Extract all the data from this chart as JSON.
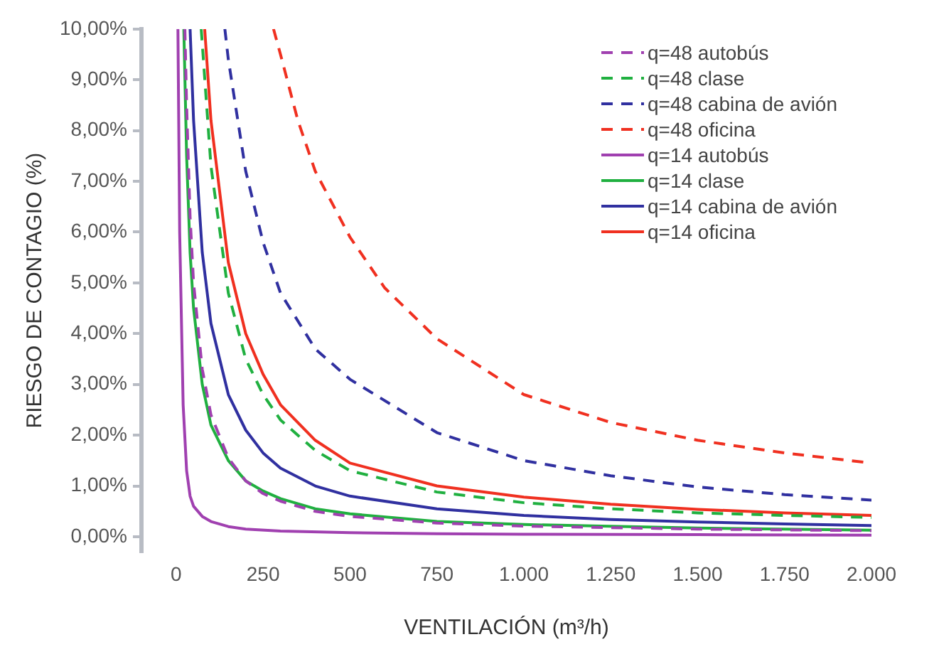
{
  "chart_data": {
    "type": "line",
    "xlabel": "VENTILACIÓN (m³/h)",
    "ylabel": "RIESGO DE CONTAGIO (%)",
    "xlim": [
      -100,
      2000
    ],
    "ylim": [
      -0.3,
      10
    ],
    "xticks": [
      0,
      {
        "value": 250,
        "label": "250"
      },
      {
        "value": 500,
        "label": "500"
      },
      {
        "value": 750,
        "label": "750"
      },
      {
        "value": 1000,
        "label": "1.000"
      },
      {
        "value": 1250,
        "label": "1.250"
      },
      {
        "value": 1500,
        "label": "1.500"
      },
      {
        "value": 1750,
        "label": "1.750"
      },
      {
        "value": 2000,
        "label": "2.000"
      }
    ],
    "yticks": [
      {
        "value": 0,
        "label": "0,00%"
      },
      {
        "value": 1,
        "label": "1,00%"
      },
      {
        "value": 2,
        "label": "2,00%"
      },
      {
        "value": 3,
        "label": "3,00%"
      },
      {
        "value": 4,
        "label": "4,00%"
      },
      {
        "value": 5,
        "label": "5,00%"
      },
      {
        "value": 6,
        "label": "6,00%"
      },
      {
        "value": 7,
        "label": "7,00%"
      },
      {
        "value": 8,
        "label": "8,00%"
      },
      {
        "value": 9,
        "label": "9,00%"
      },
      {
        "value": 10,
        "label": "10,00%"
      }
    ],
    "grid": false,
    "legend": "top right",
    "marker": "none",
    "series": [
      {
        "name": "q=48 autobús",
        "color": "#a040b0",
        "line_style": "dashed",
        "x": [
          25,
          30,
          40,
          50,
          75,
          100,
          150,
          200,
          250,
          300,
          400,
          500,
          750,
          1000,
          1500,
          2000
        ],
        "values": [
          10,
          8.5,
          6.3,
          5.0,
          3.3,
          2.4,
          1.55,
          1.1,
          0.85,
          0.7,
          0.5,
          0.4,
          0.27,
          0.21,
          0.15,
          0.12
        ]
      },
      {
        "name": "q=48 clase",
        "color": "#20b040",
        "line_style": "dashed",
        "x": [
          72,
          100,
          150,
          200,
          250,
          300,
          400,
          500,
          750,
          1000,
          1250,
          1500,
          1750,
          2000
        ],
        "values": [
          10,
          7.3,
          4.8,
          3.5,
          2.8,
          2.3,
          1.7,
          1.3,
          0.88,
          0.67,
          0.55,
          0.47,
          0.42,
          0.38
        ]
      },
      {
        "name": "q=48 cabina de avión",
        "color": "#3030a0",
        "line_style": "dashed",
        "x": [
          140,
          150,
          200,
          250,
          300,
          400,
          500,
          750,
          1000,
          1250,
          1500,
          1750,
          2000
        ],
        "values": [
          10,
          9.4,
          7.2,
          5.8,
          4.8,
          3.7,
          3.1,
          2.05,
          1.5,
          1.2,
          0.98,
          0.83,
          0.72
        ]
      },
      {
        "name": "q=48 oficina",
        "color": "#f03020",
        "line_style": "dashed",
        "x": [
          280,
          300,
          350,
          400,
          500,
          600,
          750,
          1000,
          1250,
          1500,
          1750,
          2000
        ],
        "values": [
          10,
          9.5,
          8.2,
          7.2,
          5.9,
          4.9,
          3.9,
          2.8,
          2.25,
          1.9,
          1.65,
          1.45
        ]
      },
      {
        "name": "q=14 autobús",
        "color": "#a040b0",
        "line_style": "solid",
        "x": [
          5,
          10,
          20,
          30,
          40,
          50,
          75,
          100,
          150,
          200,
          300,
          500,
          750,
          1000,
          1500,
          2000
        ],
        "values": [
          10,
          6,
          2.6,
          1.3,
          0.8,
          0.6,
          0.4,
          0.3,
          0.2,
          0.15,
          0.11,
          0.08,
          0.06,
          0.05,
          0.04,
          0.03
        ]
      },
      {
        "name": "q=14 clase",
        "color": "#20b040",
        "line_style": "solid",
        "x": [
          22,
          30,
          40,
          50,
          75,
          100,
          150,
          200,
          250,
          300,
          400,
          500,
          750,
          1000,
          1500,
          2000
        ],
        "values": [
          10,
          7.5,
          5.6,
          4.5,
          3.0,
          2.2,
          1.5,
          1.1,
          0.9,
          0.75,
          0.55,
          0.45,
          0.3,
          0.24,
          0.17,
          0.13
        ]
      },
      {
        "name": "q=14 cabina de avión",
        "color": "#3030a0",
        "line_style": "solid",
        "x": [
          40,
          50,
          75,
          100,
          150,
          200,
          250,
          300,
          400,
          500,
          750,
          1000,
          1250,
          1500,
          1750,
          2000
        ],
        "values": [
          10,
          8.2,
          5.6,
          4.2,
          2.8,
          2.1,
          1.65,
          1.35,
          1.0,
          0.8,
          0.55,
          0.42,
          0.34,
          0.29,
          0.25,
          0.22
        ]
      },
      {
        "name": "q=14 oficina",
        "color": "#f03020",
        "line_style": "solid",
        "x": [
          82,
          100,
          150,
          200,
          250,
          300,
          400,
          500,
          750,
          1000,
          1250,
          1500,
          1750,
          2000
        ],
        "values": [
          10,
          8.2,
          5.4,
          4.0,
          3.2,
          2.6,
          1.9,
          1.45,
          1.0,
          0.78,
          0.64,
          0.54,
          0.47,
          0.42
        ]
      }
    ]
  }
}
